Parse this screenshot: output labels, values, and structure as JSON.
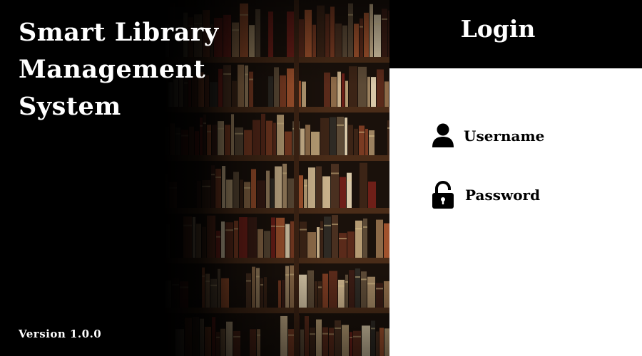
{
  "app": {
    "title_lines": [
      "Smart Library",
      "Management",
      "System"
    ],
    "version": "Version 1.0.0"
  },
  "login": {
    "title": "Login",
    "username_label": "Username",
    "password_label": "Password"
  },
  "icons": {
    "username": "user-icon",
    "password": "lock-icon"
  },
  "colors": {
    "hero_background": "#000000",
    "login_header": "#000000",
    "login_panel": "#ffffff",
    "text_light": "#ffffff",
    "text_dark": "#000000"
  }
}
